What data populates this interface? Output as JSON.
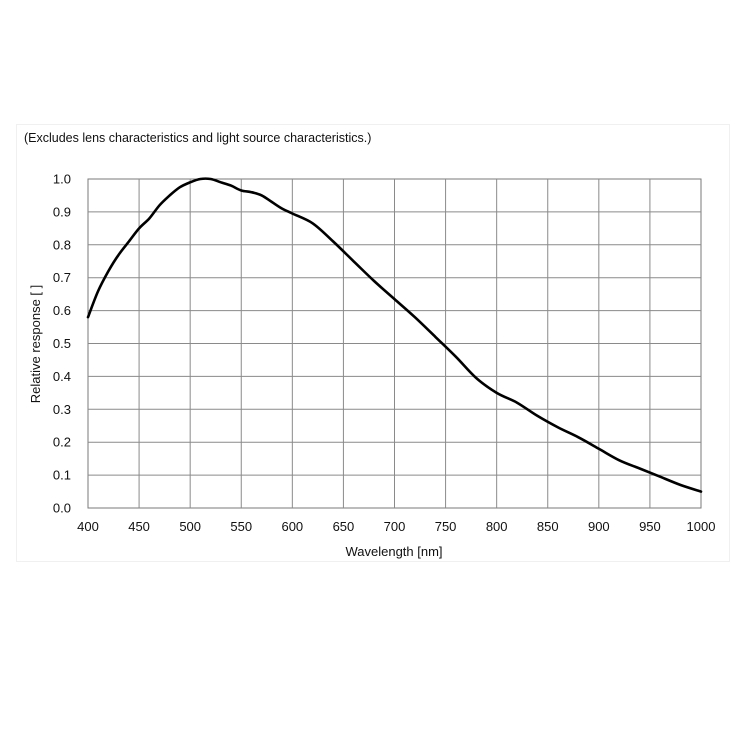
{
  "chart_data": {
    "type": "line",
    "note": "(Excludes lens characteristics and light source characteristics.)",
    "xlabel": "Wavelength [nm]",
    "ylabel": "Relative response [ ]",
    "xlim": [
      400,
      1000
    ],
    "ylim": [
      0.0,
      1.0
    ],
    "xticks": [
      "400",
      "450",
      "500",
      "550",
      "600",
      "650",
      "700",
      "750",
      "800",
      "850",
      "900",
      "950",
      "1000"
    ],
    "yticks": [
      "0.0",
      "0.1",
      "0.2",
      "0.3",
      "0.4",
      "0.5",
      "0.6",
      "0.7",
      "0.8",
      "0.9",
      "1.0"
    ],
    "grid": true,
    "series": [
      {
        "line_color": "#000000",
        "x": [
          400,
          410,
          420,
          430,
          440,
          450,
          460,
          470,
          480,
          490,
          500,
          510,
          520,
          530,
          540,
          550,
          560,
          570,
          580,
          590,
          600,
          620,
          640,
          660,
          680,
          700,
          720,
          740,
          760,
          780,
          800,
          820,
          840,
          860,
          880,
          900,
          920,
          940,
          960,
          980,
          1000
        ],
        "values": [
          0.58,
          0.66,
          0.72,
          0.77,
          0.81,
          0.85,
          0.88,
          0.92,
          0.95,
          0.975,
          0.99,
          1.0,
          1.0,
          0.99,
          0.98,
          0.965,
          0.96,
          0.95,
          0.93,
          0.91,
          0.895,
          0.865,
          0.81,
          0.75,
          0.69,
          0.635,
          0.58,
          0.52,
          0.46,
          0.395,
          0.35,
          0.32,
          0.28,
          0.245,
          0.215,
          0.18,
          0.145,
          0.12,
          0.095,
          0.07,
          0.05
        ]
      }
    ]
  }
}
